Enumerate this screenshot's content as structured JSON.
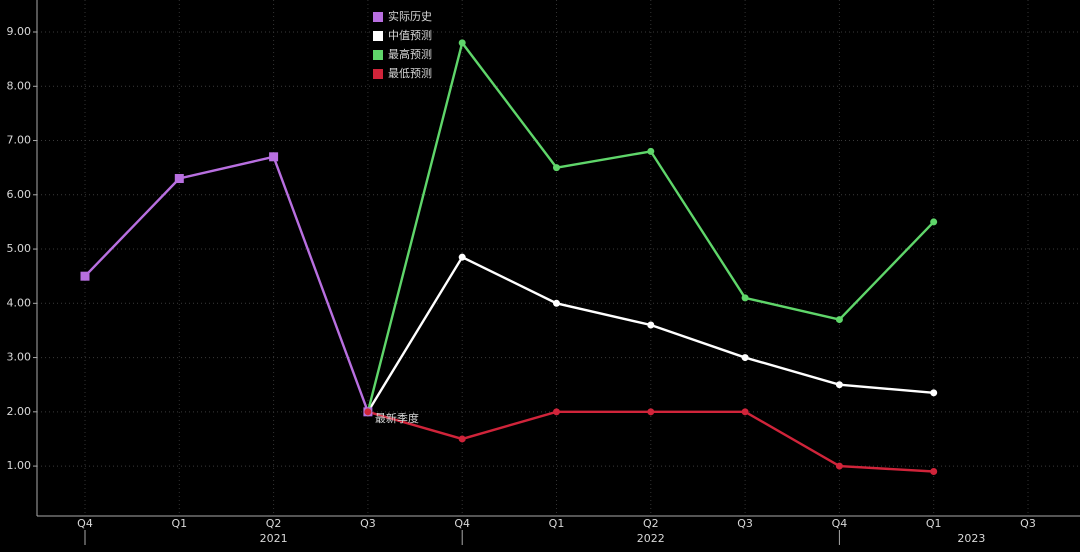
{
  "chart_data": {
    "type": "line",
    "categories": [
      "Q4",
      "Q1",
      "Q2",
      "Q3",
      "Q4",
      "Q1",
      "Q2",
      "Q3",
      "Q4",
      "Q1",
      "Q3"
    ],
    "years": [
      "2021",
      "2022",
      "2023"
    ],
    "series": [
      {
        "name": "实际历史",
        "color": "#b86fe0",
        "marker": "square",
        "values": [
          4.5,
          6.3,
          6.7,
          2.0,
          null,
          null,
          null,
          null,
          null,
          null,
          null
        ]
      },
      {
        "name": "中值预测",
        "color": "#ffffff",
        "marker": "circle",
        "values": [
          null,
          null,
          null,
          2.0,
          4.85,
          4.0,
          3.6,
          3.0,
          2.5,
          2.35,
          null
        ]
      },
      {
        "name": "最高预测",
        "color": "#5fd66a",
        "marker": "circle",
        "values": [
          null,
          null,
          null,
          2.0,
          8.8,
          6.5,
          6.8,
          4.1,
          3.7,
          5.5,
          null
        ]
      },
      {
        "name": "最低预测",
        "color": "#d0243a",
        "marker": "circle",
        "values": [
          null,
          null,
          null,
          2.0,
          1.5,
          2.0,
          2.0,
          2.0,
          1.0,
          0.9,
          null
        ]
      }
    ],
    "annotation": "最新季度",
    "ylim": [
      0.08,
      9.59
    ],
    "yticks": [
      {
        "value": 1,
        "label": "1.00"
      },
      {
        "value": 2,
        "label": "2.00"
      },
      {
        "value": 3,
        "label": "3.00"
      },
      {
        "value": 4,
        "label": "4.00"
      },
      {
        "value": 5,
        "label": "5.00"
      },
      {
        "value": 6,
        "label": "6.00"
      },
      {
        "value": 7,
        "label": "7.00"
      },
      {
        "value": 8,
        "label": "8.00"
      },
      {
        "value": 9,
        "label": "9.00"
      }
    ],
    "grid": true,
    "legend": "top"
  }
}
